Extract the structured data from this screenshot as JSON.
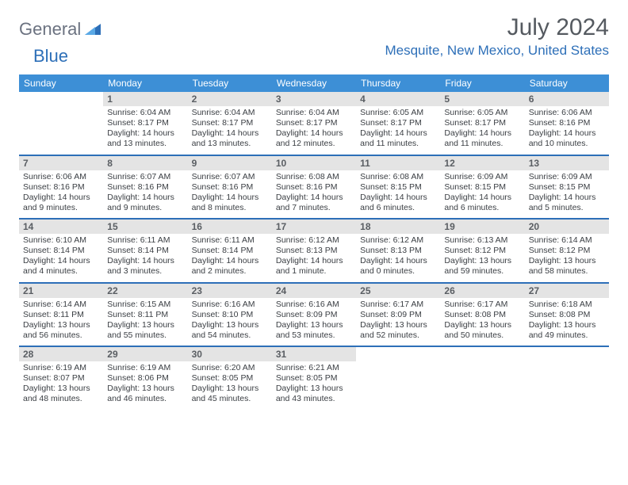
{
  "logo": {
    "part1": "General",
    "part2": "Blue"
  },
  "title": "July 2024",
  "location": "Mesquite, New Mexico, United States",
  "colors": {
    "header_bg": "#3d8fd6",
    "accent": "#2d6fb8",
    "daynum_bg": "#e4e4e4",
    "text_muted": "#6b7280",
    "text_body": "#3a3e43"
  },
  "dayNames": [
    "Sunday",
    "Monday",
    "Tuesday",
    "Wednesday",
    "Thursday",
    "Friday",
    "Saturday"
  ],
  "weeks": [
    [
      {
        "n": "",
        "sr": "",
        "ss": "",
        "dl": ""
      },
      {
        "n": "1",
        "sr": "6:04 AM",
        "ss": "8:17 PM",
        "dl": "14 hours and 13 minutes."
      },
      {
        "n": "2",
        "sr": "6:04 AM",
        "ss": "8:17 PM",
        "dl": "14 hours and 13 minutes."
      },
      {
        "n": "3",
        "sr": "6:04 AM",
        "ss": "8:17 PM",
        "dl": "14 hours and 12 minutes."
      },
      {
        "n": "4",
        "sr": "6:05 AM",
        "ss": "8:17 PM",
        "dl": "14 hours and 11 minutes."
      },
      {
        "n": "5",
        "sr": "6:05 AM",
        "ss": "8:17 PM",
        "dl": "14 hours and 11 minutes."
      },
      {
        "n": "6",
        "sr": "6:06 AM",
        "ss": "8:16 PM",
        "dl": "14 hours and 10 minutes."
      }
    ],
    [
      {
        "n": "7",
        "sr": "6:06 AM",
        "ss": "8:16 PM",
        "dl": "14 hours and 9 minutes."
      },
      {
        "n": "8",
        "sr": "6:07 AM",
        "ss": "8:16 PM",
        "dl": "14 hours and 9 minutes."
      },
      {
        "n": "9",
        "sr": "6:07 AM",
        "ss": "8:16 PM",
        "dl": "14 hours and 8 minutes."
      },
      {
        "n": "10",
        "sr": "6:08 AM",
        "ss": "8:16 PM",
        "dl": "14 hours and 7 minutes."
      },
      {
        "n": "11",
        "sr": "6:08 AM",
        "ss": "8:15 PM",
        "dl": "14 hours and 6 minutes."
      },
      {
        "n": "12",
        "sr": "6:09 AM",
        "ss": "8:15 PM",
        "dl": "14 hours and 6 minutes."
      },
      {
        "n": "13",
        "sr": "6:09 AM",
        "ss": "8:15 PM",
        "dl": "14 hours and 5 minutes."
      }
    ],
    [
      {
        "n": "14",
        "sr": "6:10 AM",
        "ss": "8:14 PM",
        "dl": "14 hours and 4 minutes."
      },
      {
        "n": "15",
        "sr": "6:11 AM",
        "ss": "8:14 PM",
        "dl": "14 hours and 3 minutes."
      },
      {
        "n": "16",
        "sr": "6:11 AM",
        "ss": "8:14 PM",
        "dl": "14 hours and 2 minutes."
      },
      {
        "n": "17",
        "sr": "6:12 AM",
        "ss": "8:13 PM",
        "dl": "14 hours and 1 minute."
      },
      {
        "n": "18",
        "sr": "6:12 AM",
        "ss": "8:13 PM",
        "dl": "14 hours and 0 minutes."
      },
      {
        "n": "19",
        "sr": "6:13 AM",
        "ss": "8:12 PM",
        "dl": "13 hours and 59 minutes."
      },
      {
        "n": "20",
        "sr": "6:14 AM",
        "ss": "8:12 PM",
        "dl": "13 hours and 58 minutes."
      }
    ],
    [
      {
        "n": "21",
        "sr": "6:14 AM",
        "ss": "8:11 PM",
        "dl": "13 hours and 56 minutes."
      },
      {
        "n": "22",
        "sr": "6:15 AM",
        "ss": "8:11 PM",
        "dl": "13 hours and 55 minutes."
      },
      {
        "n": "23",
        "sr": "6:16 AM",
        "ss": "8:10 PM",
        "dl": "13 hours and 54 minutes."
      },
      {
        "n": "24",
        "sr": "6:16 AM",
        "ss": "8:09 PM",
        "dl": "13 hours and 53 minutes."
      },
      {
        "n": "25",
        "sr": "6:17 AM",
        "ss": "8:09 PM",
        "dl": "13 hours and 52 minutes."
      },
      {
        "n": "26",
        "sr": "6:17 AM",
        "ss": "8:08 PM",
        "dl": "13 hours and 50 minutes."
      },
      {
        "n": "27",
        "sr": "6:18 AM",
        "ss": "8:08 PM",
        "dl": "13 hours and 49 minutes."
      }
    ],
    [
      {
        "n": "28",
        "sr": "6:19 AM",
        "ss": "8:07 PM",
        "dl": "13 hours and 48 minutes."
      },
      {
        "n": "29",
        "sr": "6:19 AM",
        "ss": "8:06 PM",
        "dl": "13 hours and 46 minutes."
      },
      {
        "n": "30",
        "sr": "6:20 AM",
        "ss": "8:05 PM",
        "dl": "13 hours and 45 minutes."
      },
      {
        "n": "31",
        "sr": "6:21 AM",
        "ss": "8:05 PM",
        "dl": "13 hours and 43 minutes."
      },
      {
        "n": "",
        "sr": "",
        "ss": "",
        "dl": ""
      },
      {
        "n": "",
        "sr": "",
        "ss": "",
        "dl": ""
      },
      {
        "n": "",
        "sr": "",
        "ss": "",
        "dl": ""
      }
    ]
  ],
  "labels": {
    "sunrise": "Sunrise:",
    "sunset": "Sunset:",
    "daylight": "Daylight:"
  }
}
